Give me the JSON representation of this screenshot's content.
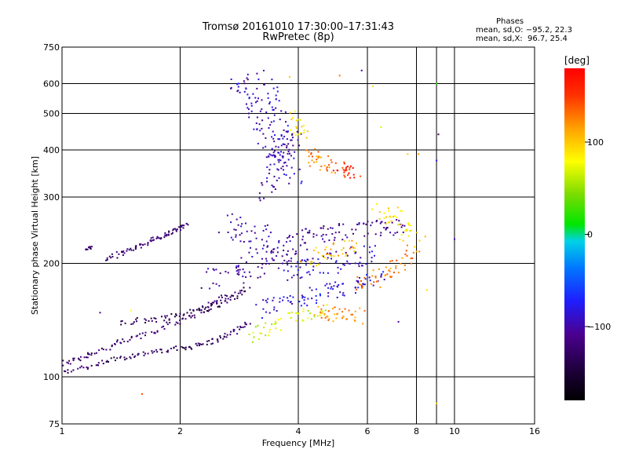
{
  "title": {
    "line1": "Tromsø 20161010 17:30:00–17:31:43",
    "line2": "RwPretec (8p)"
  },
  "stats": {
    "heading": "Phases",
    "o_mode": "mean, sd,O: −95.2, 22.3",
    "x_mode": "mean, sd,X:  96.7, 25.4"
  },
  "colorbar": {
    "label": "[deg]",
    "range": [
      -180,
      180
    ],
    "tick_labels": [
      "100",
      "0",
      "−100"
    ],
    "tick_values": [
      100,
      0,
      -100
    ]
  },
  "chart_data": {
    "type": "scatter",
    "xlabel": "Frequency [MHz]",
    "ylabel": "Stationary phase Virtual Height [km]",
    "xscale": "log2",
    "yscale": "log",
    "xlim": [
      1,
      16
    ],
    "ylim": [
      75,
      750
    ],
    "x_ticks": [
      1,
      2,
      4,
      6,
      8,
      10,
      16
    ],
    "x_tick_labels": [
      "1",
      "2",
      "4",
      "6",
      "8",
      "10",
      "16"
    ],
    "x_grid": [
      1,
      2,
      4,
      6,
      8,
      9,
      10,
      16
    ],
    "y_ticks": [
      75,
      100,
      200,
      300,
      400,
      500,
      600,
      750
    ],
    "y_tick_labels": [
      "75",
      "100",
      "200",
      "300",
      "400",
      "500",
      "600",
      "750"
    ],
    "y_grid": [
      75,
      100,
      200,
      300,
      400,
      500,
      600,
      750
    ],
    "grid": true,
    "color_variable": "phase (deg)",
    "traces": [
      {
        "x": [
          1.0,
          1.1,
          1.2,
          1.35,
          1.5,
          1.7,
          1.9,
          2.1,
          2.3,
          2.5,
          2.8
        ],
        "y": [
          108,
          112,
          116,
          121,
          126,
          132,
          138,
          145,
          152,
          160,
          168
        ],
        "phase": -125,
        "spread": 0.02
      },
      {
        "x": [
          1.0,
          1.15,
          1.3,
          1.45,
          1.6,
          1.8,
          2.0,
          2.2,
          2.4,
          2.6,
          2.8,
          3.0
        ],
        "y": [
          103,
          106,
          110,
          113,
          115,
          117,
          119,
          121,
          124,
          128,
          133,
          140
        ],
        "phase": -130,
        "spread": 0.015
      },
      {
        "x": [
          1.4,
          1.6,
          1.8,
          2.0,
          2.2,
          2.4,
          2.6,
          2.8,
          3.0
        ],
        "y": [
          140,
          141,
          143,
          146,
          149,
          153,
          158,
          165,
          172
        ],
        "phase": -135,
        "spread": 0.02
      },
      {
        "x": [
          1.3,
          1.4,
          1.5,
          1.6,
          1.7,
          1.8,
          1.9,
          2.0,
          2.1
        ],
        "y": [
          205,
          212,
          218,
          224,
          230,
          236,
          242,
          248,
          255
        ],
        "phase": -120,
        "spread": 0.015
      },
      {
        "x": [
          1.15,
          1.2
        ],
        "y": [
          218,
          220
        ],
        "phase": -120,
        "spread": 0.01
      },
      {
        "x": [
          2.8,
          2.9,
          3.0,
          3.1,
          3.2,
          3.3,
          3.4,
          3.5
        ],
        "y": [
          620,
          600,
          560,
          520,
          480,
          440,
          400,
          360
        ],
        "phase": -95,
        "spread": 0.06
      },
      {
        "x": [
          3.3,
          3.4,
          3.5,
          3.6,
          3.7,
          3.8,
          3.9
        ],
        "y": [
          620,
          560,
          500,
          450,
          410,
          370,
          330
        ],
        "phase": -90,
        "spread": 0.06
      },
      {
        "x": [
          3.3,
          3.4,
          3.5,
          3.6,
          3.7,
          3.8,
          3.9
        ],
        "y": [
          300,
          330,
          360,
          380,
          400,
          420,
          440
        ],
        "phase": -100,
        "spread": 0.05
      },
      {
        "x": [
          2.6,
          2.8,
          3.0,
          3.2,
          3.4,
          3.6,
          3.8,
          4.0
        ],
        "y": [
          260,
          250,
          240,
          232,
          226,
          221,
          216,
          212
        ],
        "phase": -100,
        "spread": 0.08
      },
      {
        "x": [
          2.4,
          2.6,
          2.8,
          3.0,
          3.2,
          3.4,
          3.6
        ],
        "y": [
          180,
          185,
          190,
          196,
          202,
          208,
          214
        ],
        "phase": -105,
        "spread": 0.08
      },
      {
        "x": [
          3.8,
          4.0,
          4.3,
          4.6,
          5.0,
          5.4,
          5.8,
          6.2
        ],
        "y": [
          190,
          192,
          195,
          198,
          202,
          206,
          210,
          214
        ],
        "phase": -90,
        "spread": 0.06
      },
      {
        "x": [
          3.2,
          3.5,
          3.8,
          4.1,
          4.4,
          4.8,
          5.2,
          5.6,
          6.0,
          6.5
        ],
        "y": [
          150,
          154,
          158,
          162,
          165,
          168,
          171,
          174,
          178,
          182
        ],
        "phase": -85,
        "spread": 0.05
      },
      {
        "x": [
          4.0,
          4.3,
          4.6,
          5.0,
          5.5,
          6.0,
          6.5,
          7.0,
          7.5
        ],
        "y": [
          235,
          238,
          240,
          242,
          244,
          246,
          248,
          249,
          250
        ],
        "phase": -110,
        "spread": 0.05
      },
      {
        "x": [
          3.0,
          3.3,
          3.6,
          4.0,
          4.4,
          4.8
        ],
        "y": [
          128,
          134,
          140,
          145,
          148,
          150
        ],
        "phase": 70,
        "spread": 0.04
      },
      {
        "x": [
          4.2,
          4.4,
          4.6,
          4.8
        ],
        "y": [
          390,
          380,
          370,
          360
        ],
        "phase": 125,
        "spread": 0.05
      },
      {
        "x": [
          5.0,
          5.2,
          5.4,
          5.6
        ],
        "y": [
          365,
          358,
          350,
          345
        ],
        "phase": 155,
        "spread": 0.04
      },
      {
        "x": [
          4.5,
          4.8,
          5.1,
          5.4,
          5.8
        ],
        "y": [
          150,
          148,
          146,
          145,
          144
        ],
        "phase": 120,
        "spread": 0.05
      },
      {
        "x": [
          5.8,
          6.2,
          6.6,
          7.0,
          7.5,
          8.0
        ],
        "y": [
          175,
          180,
          188,
          196,
          205,
          215
        ],
        "phase": 125,
        "spread": 0.05
      },
      {
        "x": [
          4.2,
          4.5,
          4.9,
          5.3,
          5.7
        ],
        "y": [
          205,
          210,
          214,
          218,
          222
        ],
        "phase": 105,
        "spread": 0.05
      },
      {
        "x": [
          6.4,
          6.8,
          7.2,
          7.6,
          8.0
        ],
        "y": [
          280,
          270,
          255,
          240,
          225
        ],
        "phase": 90,
        "spread": 0.06
      },
      {
        "x": [
          3.9,
          4.0,
          4.1
        ],
        "y": [
          500,
          470,
          440
        ],
        "phase": 85,
        "spread": 0.05
      }
    ],
    "points": [
      {
        "x": 1.6,
        "y": 90,
        "phase": 140
      },
      {
        "x": 9.0,
        "y": 85,
        "phase": 100
      },
      {
        "x": 9.1,
        "y": 440,
        "phase": -130
      },
      {
        "x": 9.0,
        "y": 375,
        "phase": -80
      },
      {
        "x": 10.0,
        "y": 232,
        "phase": -100
      },
      {
        "x": 8.5,
        "y": 170,
        "phase": 95
      },
      {
        "x": 5.8,
        "y": 650,
        "phase": -110
      },
      {
        "x": 5.1,
        "y": 630,
        "phase": 130
      },
      {
        "x": 3.8,
        "y": 625,
        "phase": 100
      },
      {
        "x": 6.2,
        "y": 590,
        "phase": 90
      },
      {
        "x": 6.5,
        "y": 460,
        "phase": 70
      },
      {
        "x": 7.6,
        "y": 390,
        "phase": 100
      },
      {
        "x": 8.1,
        "y": 390,
        "phase": 120
      },
      {
        "x": 7.2,
        "y": 140,
        "phase": -100
      },
      {
        "x": 1.25,
        "y": 148,
        "phase": -110
      },
      {
        "x": 1.5,
        "y": 150,
        "phase": 80
      },
      {
        "x": 9.0,
        "y": 600,
        "phase": 20
      }
    ]
  }
}
